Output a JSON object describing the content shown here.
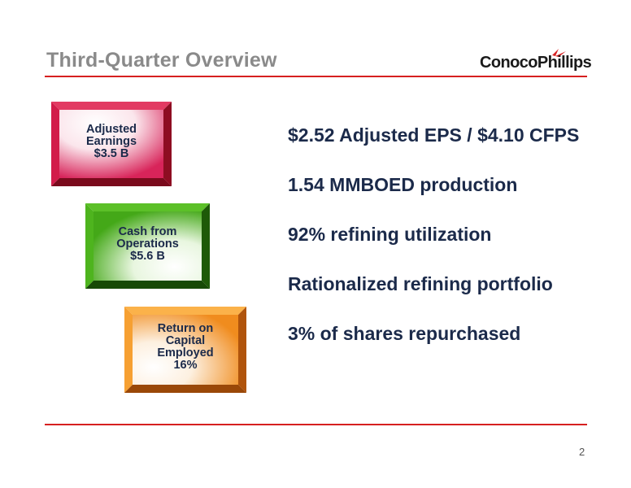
{
  "slide": {
    "title": "Third-Quarter Overview",
    "logo": {
      "text": "ConocoPhillips",
      "icon": "conocophillips-logo-icon"
    },
    "boxes": [
      {
        "lines": [
          "Adjusted",
          "Earnings",
          "$3.5 B"
        ],
        "color": "#c0143c"
      },
      {
        "lines": [
          "Cash from",
          "Operations",
          "$5.6 B"
        ],
        "color": "#3c9a14"
      },
      {
        "lines": [
          "Return on",
          "Capital",
          "Employed",
          "16%"
        ],
        "color": "#f08c1e"
      }
    ],
    "bullets": [
      "$2.52 Adjusted EPS / $4.10 CFPS",
      "1.54 MMBOED production",
      "92% refining utilization",
      "Rationalized refining portfolio",
      "3% of shares repurchased"
    ],
    "page_number": "2",
    "accent_color": "#d62020"
  }
}
